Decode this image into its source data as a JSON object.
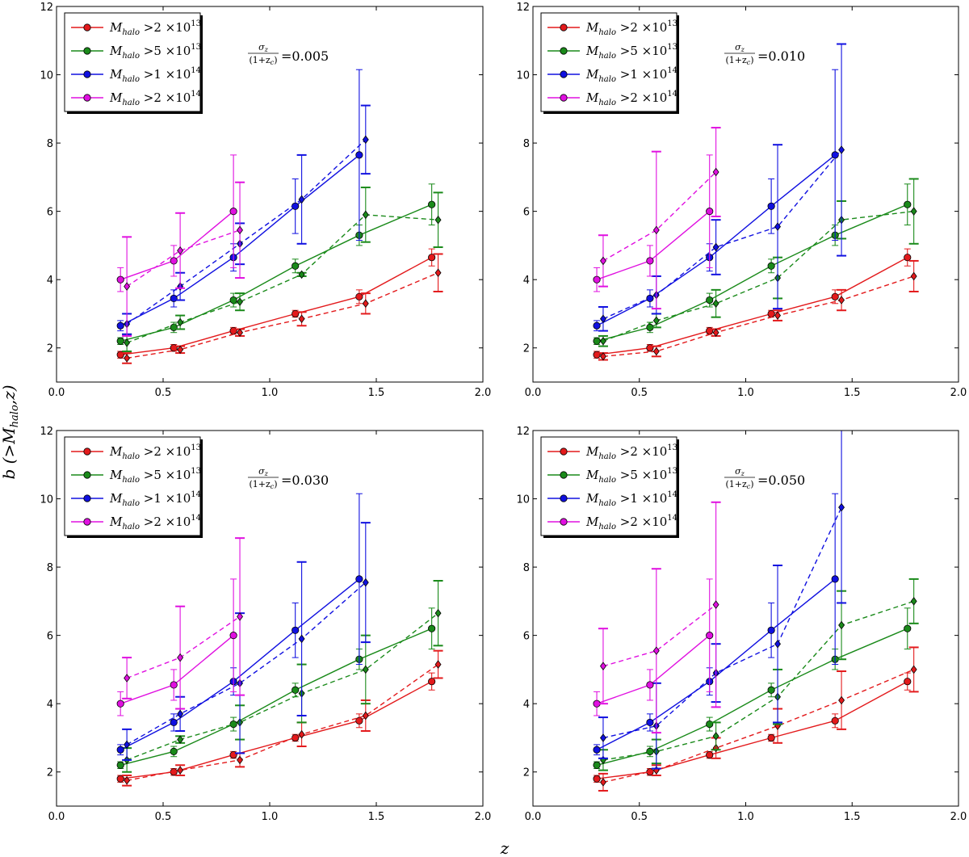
{
  "figure": {
    "ylabel": "b (>M",
    "ylabel_sub": "halo",
    "ylabel_end": ",z)",
    "xlabel": "z"
  },
  "colors": {
    "red": "#e31a1c",
    "green": "#1a8a1a",
    "blue": "#1010e0",
    "magenta": "#e010e0"
  },
  "legend_entries": [
    {
      "label": "M",
      "sub": "halo",
      "rest": " >2 ×10",
      "exp": "13",
      "color": "red"
    },
    {
      "label": "M",
      "sub": "halo",
      "rest": " >5 ×10",
      "exp": "13",
      "color": "green"
    },
    {
      "label": "M",
      "sub": "halo",
      "rest": " >1 ×10",
      "exp": "14",
      "color": "blue"
    },
    {
      "label": "M",
      "sub": "halo",
      "rest": " >2 ×10",
      "exp": "14",
      "color": "magenta"
    }
  ],
  "annotation": {
    "numerator": "σ",
    "numerator_sub": "z",
    "denominator": "(1+z",
    "denominator_sub": "c",
    "denominator_end": ")"
  },
  "chart_data": [
    {
      "type": "line",
      "sigma_label": "=0.005",
      "xlim": [
        0.0,
        2.0
      ],
      "ylim": [
        1,
        12
      ],
      "xticks": [
        "0.0",
        "0.5",
        "1.0",
        "1.5",
        "2.0"
      ],
      "yticks": [
        "2",
        "4",
        "6",
        "8",
        "10",
        "12"
      ],
      "series": [
        {
          "name": "Mhalo>2e13",
          "color": "red",
          "solid": {
            "x": [
              0.3,
              0.55,
              0.83,
              1.12,
              1.42,
              1.76
            ],
            "y": [
              1.8,
              2.0,
              2.5,
              3.0,
              3.5,
              4.65
            ],
            "err": [
              0.1,
              0.1,
              0.1,
              0.1,
              0.2,
              0.25
            ]
          },
          "dashed": {
            "x": [
              0.33,
              0.58,
              0.86,
              1.15,
              1.45,
              1.79
            ],
            "y": [
              1.7,
              1.95,
              2.45,
              2.85,
              3.3,
              4.2
            ],
            "err": [
              0.15,
              0.1,
              0.1,
              0.2,
              0.3,
              0.55
            ]
          }
        },
        {
          "name": "Mhalo>5e13",
          "color": "green",
          "solid": {
            "x": [
              0.3,
              0.55,
              0.83,
              1.12,
              1.42,
              1.76
            ],
            "y": [
              2.2,
              2.6,
              3.4,
              4.4,
              5.3,
              6.2
            ],
            "err": [
              0.1,
              0.15,
              0.2,
              0.2,
              0.3,
              0.6
            ]
          },
          "dashed": {
            "x": [
              0.33,
              0.58,
              0.86,
              1.15,
              1.45,
              1.79
            ],
            "y": [
              2.15,
              2.75,
              3.35,
              4.15,
              5.9,
              5.75
            ],
            "err": [
              0.25,
              0.2,
              0.25,
              0.05,
              0.8,
              0.8
            ]
          }
        },
        {
          "name": "Mhalo>1e14",
          "color": "blue",
          "solid": {
            "x": [
              0.3,
              0.55,
              0.83,
              1.12,
              1.42
            ],
            "y": [
              2.65,
              3.45,
              4.65,
              6.15,
              7.65
            ],
            "err": [
              0.15,
              0.25,
              0.4,
              0.8,
              2.5
            ]
          },
          "dashed": {
            "x": [
              0.33,
              0.58,
              0.86,
              1.15,
              1.45
            ],
            "y": [
              2.7,
              3.8,
              5.05,
              6.35,
              8.1
            ],
            "err": [
              0.3,
              0.4,
              0.6,
              1.3,
              1.0
            ]
          }
        },
        {
          "name": "Mhalo>2e14",
          "color": "magenta",
          "solid": {
            "x": [
              0.3,
              0.55,
              0.83
            ],
            "y": [
              4.0,
              4.55,
              6.0
            ],
            "err": [
              0.35,
              0.45,
              1.65
            ]
          },
          "dashed": {
            "x": [
              0.33,
              0.58,
              0.86
            ],
            "y": [
              3.8,
              4.85,
              5.45
            ],
            "err": [
              1.45,
              1.1,
              1.4
            ]
          }
        }
      ]
    },
    {
      "type": "line",
      "sigma_label": "=0.010",
      "xlim": [
        0.0,
        2.0
      ],
      "ylim": [
        1,
        12
      ],
      "xticks": [
        "0.0",
        "0.5",
        "1.0",
        "1.5",
        "2.0"
      ],
      "yticks": [
        "2",
        "4",
        "6",
        "8",
        "10",
        "12"
      ],
      "series": [
        {
          "name": "Mhalo>2e13",
          "color": "red",
          "solid": {
            "x": [
              0.3,
              0.55,
              0.83,
              1.12,
              1.42,
              1.76
            ],
            "y": [
              1.8,
              2.0,
              2.5,
              3.0,
              3.5,
              4.65
            ],
            "err": [
              0.1,
              0.1,
              0.1,
              0.1,
              0.2,
              0.25
            ]
          },
          "dashed": {
            "x": [
              0.33,
              0.58,
              0.86,
              1.15,
              1.45,
              1.79
            ],
            "y": [
              1.75,
              1.9,
              2.45,
              2.95,
              3.4,
              4.1
            ],
            "err": [
              0.1,
              0.15,
              0.1,
              0.15,
              0.3,
              0.45
            ]
          }
        },
        {
          "name": "Mhalo>5e13",
          "color": "green",
          "solid": {
            "x": [
              0.3,
              0.55,
              0.83,
              1.12,
              1.42,
              1.76
            ],
            "y": [
              2.2,
              2.6,
              3.4,
              4.4,
              5.3,
              6.2
            ],
            "err": [
              0.1,
              0.15,
              0.2,
              0.2,
              0.3,
              0.6
            ]
          },
          "dashed": {
            "x": [
              0.33,
              0.58,
              0.86,
              1.15,
              1.45,
              1.79
            ],
            "y": [
              2.2,
              2.8,
              3.3,
              4.05,
              5.75,
              6.0
            ],
            "err": [
              0.15,
              0.2,
              0.4,
              0.6,
              0.55,
              0.95
            ]
          }
        },
        {
          "name": "Mhalo>1e14",
          "color": "blue",
          "solid": {
            "x": [
              0.3,
              0.55,
              0.83,
              1.12,
              1.42
            ],
            "y": [
              2.65,
              3.45,
              4.65,
              6.15,
              7.65
            ],
            "err": [
              0.15,
              0.25,
              0.4,
              0.8,
              2.5
            ]
          },
          "dashed": {
            "x": [
              0.33,
              0.58,
              0.86,
              1.15,
              1.45
            ],
            "y": [
              2.85,
              3.55,
              4.95,
              5.55,
              7.8
            ],
            "err": [
              0.35,
              0.55,
              0.8,
              2.4,
              3.1
            ]
          }
        },
        {
          "name": "Mhalo>2e14",
          "color": "magenta",
          "solid": {
            "x": [
              0.3,
              0.55,
              0.83
            ],
            "y": [
              4.0,
              4.55,
              6.0
            ],
            "err": [
              0.35,
              0.45,
              1.65
            ]
          },
          "dashed": {
            "x": [
              0.33,
              0.58,
              0.86
            ],
            "y": [
              4.55,
              5.45,
              7.15
            ],
            "err": [
              0.75,
              2.3,
              1.3
            ]
          }
        }
      ]
    },
    {
      "type": "line",
      "sigma_label": "=0.030",
      "xlim": [
        0.0,
        2.0
      ],
      "ylim": [
        1,
        12
      ],
      "xticks": [
        "0.0",
        "0.5",
        "1.0",
        "1.5",
        "2.0"
      ],
      "yticks": [
        "2",
        "4",
        "6",
        "8",
        "10",
        "12"
      ],
      "series": [
        {
          "name": "Mhalo>2e13",
          "color": "red",
          "solid": {
            "x": [
              0.3,
              0.55,
              0.83,
              1.12,
              1.42,
              1.76
            ],
            "y": [
              1.8,
              2.0,
              2.5,
              3.0,
              3.5,
              4.65
            ],
            "err": [
              0.1,
              0.1,
              0.1,
              0.1,
              0.2,
              0.25
            ]
          },
          "dashed": {
            "x": [
              0.33,
              0.58,
              0.86,
              1.15,
              1.45,
              1.79
            ],
            "y": [
              1.75,
              2.05,
              2.35,
              3.1,
              3.65,
              5.15
            ],
            "err": [
              0.15,
              0.15,
              0.2,
              0.35,
              0.45,
              0.4
            ]
          }
        },
        {
          "name": "Mhalo>5e13",
          "color": "green",
          "solid": {
            "x": [
              0.3,
              0.55,
              0.83,
              1.12,
              1.42,
              1.76
            ],
            "y": [
              2.2,
              2.6,
              3.4,
              4.4,
              5.3,
              6.2
            ],
            "err": [
              0.1,
              0.15,
              0.2,
              0.2,
              0.3,
              0.6
            ]
          },
          "dashed": {
            "x": [
              0.33,
              0.58,
              0.86,
              1.15,
              1.45,
              1.79
            ],
            "y": [
              2.35,
              2.95,
              3.45,
              4.3,
              5.0,
              6.65
            ],
            "err": [
              0.35,
              0.1,
              0.5,
              0.85,
              1.0,
              0.95
            ]
          }
        },
        {
          "name": "Mhalo>1e14",
          "color": "blue",
          "solid": {
            "x": [
              0.3,
              0.55,
              0.83,
              1.12,
              1.42
            ],
            "y": [
              2.65,
              3.45,
              4.65,
              6.15,
              7.65
            ],
            "err": [
              0.15,
              0.25,
              0.4,
              0.8,
              2.5
            ]
          },
          "dashed": {
            "x": [
              0.33,
              0.58,
              0.86,
              1.15,
              1.45
            ],
            "y": [
              2.8,
              3.7,
              4.6,
              5.9,
              7.55
            ],
            "err": [
              0.45,
              0.5,
              2.05,
              2.25,
              1.75
            ]
          }
        },
        {
          "name": "Mhalo>2e14",
          "color": "magenta",
          "solid": {
            "x": [
              0.3,
              0.55,
              0.83
            ],
            "y": [
              4.0,
              4.55,
              6.0
            ],
            "err": [
              0.35,
              0.45,
              1.65
            ]
          },
          "dashed": {
            "x": [
              0.33,
              0.58,
              0.86
            ],
            "y": [
              4.75,
              5.35,
              6.55
            ],
            "err": [
              0.6,
              1.5,
              2.3
            ]
          }
        }
      ]
    },
    {
      "type": "line",
      "sigma_label": "=0.050",
      "xlim": [
        0.0,
        2.0
      ],
      "ylim": [
        1,
        12
      ],
      "xticks": [
        "0.0",
        "0.5",
        "1.0",
        "1.5",
        "2.0"
      ],
      "yticks": [
        "2",
        "4",
        "6",
        "8",
        "10",
        "12"
      ],
      "series": [
        {
          "name": "Mhalo>2e13",
          "color": "red",
          "solid": {
            "x": [
              0.3,
              0.55,
              0.83,
              1.12,
              1.42,
              1.76
            ],
            "y": [
              1.8,
              2.0,
              2.5,
              3.0,
              3.5,
              4.65
            ],
            "err": [
              0.1,
              0.1,
              0.1,
              0.1,
              0.2,
              0.25
            ]
          },
          "dashed": {
            "x": [
              0.33,
              0.58,
              0.86,
              1.15,
              1.45,
              1.79
            ],
            "y": [
              1.7,
              2.05,
              2.7,
              3.35,
              4.1,
              5.0
            ],
            "err": [
              0.25,
              0.15,
              0.3,
              0.5,
              0.85,
              0.65
            ]
          }
        },
        {
          "name": "Mhalo>5e13",
          "color": "green",
          "solid": {
            "x": [
              0.3,
              0.55,
              0.83,
              1.12,
              1.42,
              1.76
            ],
            "y": [
              2.2,
              2.6,
              3.4,
              4.4,
              5.3,
              6.2
            ],
            "err": [
              0.1,
              0.15,
              0.2,
              0.2,
              0.3,
              0.6
            ]
          },
          "dashed": {
            "x": [
              0.33,
              0.58,
              0.86,
              1.15,
              1.45,
              1.79
            ],
            "y": [
              2.35,
              2.6,
              3.05,
              4.2,
              6.3,
              7.0
            ],
            "err": [
              0.3,
              0.35,
              0.4,
              0.8,
              1.0,
              0.65
            ]
          }
        },
        {
          "name": "Mhalo>1e14",
          "color": "blue",
          "solid": {
            "x": [
              0.3,
              0.55,
              0.83,
              1.12,
              1.42
            ],
            "y": [
              2.65,
              3.45,
              4.65,
              6.15,
              7.65
            ],
            "err": [
              0.15,
              0.25,
              0.4,
              0.8,
              2.5
            ]
          },
          "dashed": {
            "x": [
              0.33,
              0.58,
              0.86,
              1.15,
              1.45
            ],
            "y": [
              3.0,
              3.35,
              4.9,
              5.75,
              9.75
            ],
            "err": [
              0.6,
              1.25,
              0.85,
              2.3,
              2.8
            ]
          }
        },
        {
          "name": "Mhalo>2e14",
          "color": "magenta",
          "solid": {
            "x": [
              0.3,
              0.55,
              0.83
            ],
            "y": [
              4.0,
              4.55,
              6.0
            ],
            "err": [
              0.35,
              0.45,
              1.65
            ]
          },
          "dashed": {
            "x": [
              0.33,
              0.58,
              0.86
            ],
            "y": [
              5.1,
              5.55,
              6.9
            ],
            "err": [
              1.1,
              2.4,
              3.0
            ]
          }
        }
      ]
    }
  ]
}
